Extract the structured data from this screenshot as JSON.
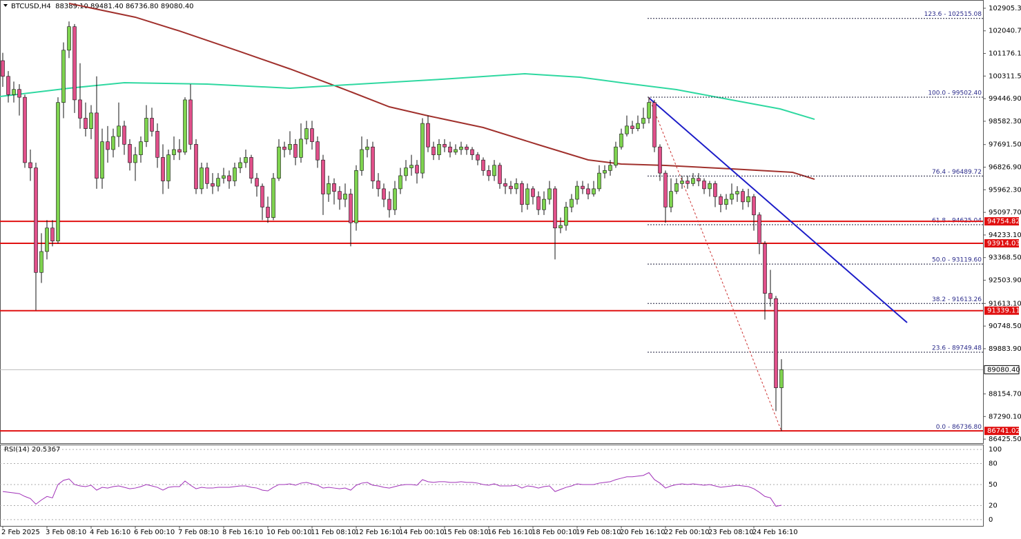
{
  "chart_data": {
    "type": "candlestick",
    "title": "BTCUSD,H4  88389.10 89481.40 86736.80 89080.40",
    "bull_color": "#7ed34f",
    "bear_color": "#e0508a",
    "ylim": [
      86270,
      103220
    ],
    "yticks": [
      {
        "value": 102905.3,
        "label": "102905.30"
      },
      {
        "value": 102040.7,
        "label": "102040.70"
      },
      {
        "value": 101176.1,
        "label": "101176.10"
      },
      {
        "value": 100311.5,
        "label": "100311.50"
      },
      {
        "value": 99446.9,
        "label": "99446.90"
      },
      {
        "value": 98582.3,
        "label": "98582.30"
      },
      {
        "value": 97691.5,
        "label": "97691.50"
      },
      {
        "value": 96826.9,
        "label": "96826.90"
      },
      {
        "value": 95962.3,
        "label": "95962.30"
      },
      {
        "value": 95097.7,
        "label": "95097.70"
      },
      {
        "value": 94233.1,
        "label": "94233.10"
      },
      {
        "value": 93368.5,
        "label": "93368.50"
      },
      {
        "value": 92503.9,
        "label": "92503.90"
      },
      {
        "value": 91613.1,
        "label": "91613.10"
      },
      {
        "value": 90748.5,
        "label": "90748.50"
      },
      {
        "value": 89883.9,
        "label": "89883.90"
      },
      {
        "value": 88154.7,
        "label": "88154.70"
      },
      {
        "value": 87290.1,
        "label": "87290.10"
      },
      {
        "value": 86425.5,
        "label": "86425.50"
      }
    ],
    "xticks": [
      {
        "value": 0,
        "label": "2 Feb 2025"
      },
      {
        "value": 8,
        "label": "3 Feb 08:10"
      },
      {
        "value": 16,
        "label": "4 Feb 16:10"
      },
      {
        "value": 24,
        "label": "6 Feb 00:10"
      },
      {
        "value": 32,
        "label": "7 Feb 08:10"
      },
      {
        "value": 40,
        "label": "8 Feb 16:10"
      },
      {
        "value": 48,
        "label": "10 Feb 00:10"
      },
      {
        "value": 56,
        "label": "11 Feb 08:10"
      },
      {
        "value": 64,
        "label": "12 Feb 16:10"
      },
      {
        "value": 72,
        "label": "14 Feb 00:10"
      },
      {
        "value": 80,
        "label": "15 Feb 08:10"
      },
      {
        "value": 88,
        "label": "16 Feb 16:10"
      },
      {
        "value": 96,
        "label": "18 Feb 00:10"
      },
      {
        "value": 104,
        "label": "19 Feb 08:10"
      },
      {
        "value": 112,
        "label": "20 Feb 16:10"
      },
      {
        "value": 120,
        "label": "22 Feb 00:10"
      },
      {
        "value": 128,
        "label": "23 Feb 08:10"
      },
      {
        "value": 136,
        "label": "24 Feb 16:10"
      }
    ],
    "candles": [
      [
        100900,
        101200,
        99900,
        100300
      ],
      [
        100300,
        100500,
        99300,
        99600
      ],
      [
        99600,
        100100,
        99300,
        99800
      ],
      [
        99800,
        100000,
        98800,
        99500
      ],
      [
        99500,
        99600,
        96800,
        97000
      ],
      [
        97000,
        97500,
        96300,
        96800
      ],
      [
        96800,
        97000,
        91350,
        92800
      ],
      [
        92800,
        94300,
        92400,
        93600
      ],
      [
        93600,
        94800,
        93300,
        94500
      ],
      [
        94500,
        94800,
        93800,
        94000
      ],
      [
        94000,
        99500,
        93900,
        99300
      ],
      [
        99300,
        101600,
        98700,
        101300
      ],
      [
        101300,
        102400,
        101000,
        102200
      ],
      [
        102200,
        102300,
        98900,
        99400
      ],
      [
        99400,
        100800,
        98300,
        98700
      ],
      [
        98700,
        99300,
        98000,
        98300
      ],
      [
        98300,
        99200,
        97900,
        98900
      ],
      [
        98900,
        100300,
        96000,
        96400
      ],
      [
        96400,
        98300,
        96000,
        97800
      ],
      [
        97800,
        98400,
        97000,
        97500
      ],
      [
        97500,
        98300,
        97200,
        98000
      ],
      [
        98000,
        99300,
        97600,
        98400
      ],
      [
        98400,
        98600,
        97300,
        97700
      ],
      [
        97700,
        97900,
        96700,
        97000
      ],
      [
        97000,
        97600,
        96300,
        97300
      ],
      [
        97300,
        98000,
        97000,
        97800
      ],
      [
        97800,
        99200,
        97600,
        98700
      ],
      [
        98700,
        99100,
        98000,
        98200
      ],
      [
        98200,
        98500,
        96800,
        97200
      ],
      [
        97200,
        97700,
        95800,
        96300
      ],
      [
        96300,
        97500,
        96000,
        97300
      ],
      [
        97300,
        98000,
        97100,
        97500
      ],
      [
        97500,
        97900,
        97100,
        97400
      ],
      [
        97400,
        99500,
        97300,
        99400
      ],
      [
        99400,
        100000,
        97500,
        97700
      ],
      [
        97700,
        97900,
        95800,
        96000
      ],
      [
        96000,
        97000,
        95800,
        96800
      ],
      [
        96800,
        97000,
        96000,
        96200
      ],
      [
        96200,
        96600,
        95800,
        96100
      ],
      [
        96100,
        96600,
        95900,
        96400
      ],
      [
        96400,
        96800,
        96200,
        96500
      ],
      [
        96500,
        96700,
        96000,
        96300
      ],
      [
        96300,
        97000,
        96100,
        96800
      ],
      [
        96800,
        97200,
        96600,
        97000
      ],
      [
        97000,
        97500,
        96800,
        97200
      ],
      [
        97200,
        97300,
        96200,
        96400
      ],
      [
        96400,
        96600,
        95700,
        96100
      ],
      [
        96100,
        96200,
        94800,
        95300
      ],
      [
        95300,
        95700,
        94700,
        94900
      ],
      [
        94900,
        96600,
        94800,
        96400
      ],
      [
        96400,
        97900,
        96300,
        97600
      ],
      [
        97600,
        97800,
        97200,
        97500
      ],
      [
        97500,
        98200,
        97300,
        97700
      ],
      [
        97700,
        97900,
        96900,
        97200
      ],
      [
        97200,
        98500,
        97000,
        97900
      ],
      [
        97900,
        98600,
        97700,
        98300
      ],
      [
        98300,
        98600,
        97500,
        97800
      ],
      [
        97800,
        98000,
        96800,
        97100
      ],
      [
        97100,
        97300,
        95000,
        95800
      ],
      [
        95800,
        96500,
        95500,
        96200
      ],
      [
        96200,
        96400,
        95400,
        95900
      ],
      [
        95900,
        96100,
        95200,
        95600
      ],
      [
        95600,
        96200,
        95300,
        95800
      ],
      [
        95800,
        96000,
        93800,
        94700
      ],
      [
        94700,
        96900,
        94400,
        96700
      ],
      [
        96700,
        98000,
        96500,
        97500
      ],
      [
        97500,
        97900,
        97200,
        97600
      ],
      [
        97600,
        97800,
        96000,
        96300
      ],
      [
        96300,
        96600,
        95700,
        96000
      ],
      [
        96000,
        96200,
        95300,
        95600
      ],
      [
        95600,
        95900,
        94900,
        95200
      ],
      [
        95200,
        96300,
        95000,
        96000
      ],
      [
        96000,
        96800,
        95800,
        96500
      ],
      [
        96500,
        97100,
        96300,
        96800
      ],
      [
        96800,
        97300,
        96500,
        96900
      ],
      [
        96900,
        97100,
        96200,
        96600
      ],
      [
        96600,
        98700,
        96400,
        98500
      ],
      [
        98500,
        98800,
        97400,
        97600
      ],
      [
        97600,
        97800,
        97100,
        97300
      ],
      [
        97300,
        97900,
        97100,
        97700
      ],
      [
        97700,
        97900,
        97400,
        97600
      ],
      [
        97600,
        97800,
        97200,
        97400
      ],
      [
        97400,
        97700,
        97300,
        97500
      ],
      [
        97500,
        97800,
        97300,
        97600
      ],
      [
        97600,
        97700,
        97300,
        97500
      ],
      [
        97500,
        97600,
        97100,
        97300
      ],
      [
        97300,
        97400,
        96900,
        97100
      ],
      [
        97100,
        97200,
        96500,
        96700
      ],
      [
        96700,
        96900,
        96300,
        96500
      ],
      [
        96500,
        97100,
        96300,
        96900
      ],
      [
        96900,
        97000,
        96000,
        96200
      ],
      [
        96200,
        96400,
        95800,
        96100
      ],
      [
        96100,
        96300,
        95800,
        96000
      ],
      [
        96000,
        96400,
        95800,
        96200
      ],
      [
        96200,
        96300,
        95100,
        95400
      ],
      [
        95400,
        96200,
        95200,
        96000
      ],
      [
        96000,
        96100,
        95400,
        95700
      ],
      [
        95700,
        95900,
        95000,
        95200
      ],
      [
        95200,
        95900,
        95000,
        95600
      ],
      [
        95600,
        96300,
        95400,
        96000
      ],
      [
        96000,
        96100,
        93300,
        94500
      ],
      [
        94500,
        94900,
        94300,
        94600
      ],
      [
        94600,
        95500,
        94400,
        95300
      ],
      [
        95300,
        95800,
        95100,
        95600
      ],
      [
        95600,
        96300,
        95400,
        96100
      ],
      [
        96100,
        96300,
        95800,
        96000
      ],
      [
        96000,
        96200,
        95600,
        95800
      ],
      [
        95800,
        96300,
        95700,
        96000
      ],
      [
        96000,
        96900,
        95900,
        96600
      ],
      [
        96600,
        96900,
        96400,
        96700
      ],
      [
        96700,
        97100,
        96500,
        96900
      ],
      [
        96900,
        97800,
        96800,
        97600
      ],
      [
        97600,
        98300,
        97500,
        98100
      ],
      [
        98100,
        98800,
        98000,
        98400
      ],
      [
        98400,
        98600,
        98100,
        98300
      ],
      [
        98300,
        98800,
        98200,
        98500
      ],
      [
        98500,
        99100,
        98300,
        98700
      ],
      [
        98700,
        99502.4,
        98500,
        99300
      ],
      [
        99300,
        99400,
        97400,
        97600
      ],
      [
        97600,
        97700,
        96300,
        96600
      ],
      [
        96600,
        96700,
        94700,
        95300
      ],
      [
        95300,
        96400,
        95100,
        95900
      ],
      [
        95900,
        96400,
        95800,
        96200
      ],
      [
        96200,
        96500,
        96000,
        96300
      ],
      [
        96300,
        96500,
        96000,
        96200
      ],
      [
        96200,
        96600,
        96100,
        96400
      ],
      [
        96400,
        96600,
        96100,
        96300
      ],
      [
        96300,
        96400,
        95800,
        96000
      ],
      [
        96000,
        96300,
        95700,
        96200
      ],
      [
        96200,
        96300,
        95300,
        95700
      ],
      [
        95700,
        95800,
        95100,
        95400
      ],
      [
        95400,
        95800,
        95200,
        95600
      ],
      [
        95600,
        96200,
        95400,
        95800
      ],
      [
        95800,
        96100,
        95500,
        95900
      ],
      [
        95900,
        96000,
        95200,
        95500
      ],
      [
        95500,
        96000,
        95300,
        95700
      ],
      [
        95700,
        95800,
        94400,
        95000
      ],
      [
        95000,
        95100,
        93500,
        93900
      ],
      [
        93900,
        94000,
        91000,
        92000
      ],
      [
        92000,
        92900,
        91500,
        91800
      ],
      [
        91800,
        91900,
        87500,
        88389.1
      ],
      [
        88389.1,
        89481.4,
        86736.8,
        89080.4
      ]
    ],
    "moving_averages": [
      {
        "color": "#a0302c",
        "x": [
          12,
          24,
          32,
          43,
          52,
          62,
          70,
          77,
          87,
          97,
          106,
          112,
          120,
          132,
          143,
          147
        ],
        "values": [
          103090,
          102562,
          102035,
          101244,
          100584,
          99793,
          99134,
          98791,
          98343,
          97684,
          97104,
          96945,
          96893,
          96761,
          96629,
          96365
        ]
      },
      {
        "color": "#2ed8a0",
        "x": [
          -0.5,
          12,
          22,
          37,
          52,
          64.5,
          79.5,
          94.5,
          104.5,
          112,
          122,
          132,
          140.75,
          147
        ],
        "values": [
          99530,
          99846,
          100057,
          100004,
          99846,
          100004,
          100189,
          100400,
          100268,
          100057,
          99793,
          99398,
          99055,
          98659
        ]
      }
    ],
    "levels": [
      94754.82,
      93914.03,
      91339.11,
      86741.02
    ],
    "level_color": "#e01010",
    "last_price": {
      "value": 89080.4,
      "label": "89080.40"
    },
    "fib": {
      "start": 116.75,
      "color": "#1a1a3a",
      "levels": [
        {
          "value": 102515.08,
          "label": "123.6 - 102515.08"
        },
        {
          "value": 99502.4,
          "label": "100.0 - 99502.40"
        },
        {
          "value": 96489.72,
          "label": "76.4 - 96489.72"
        },
        {
          "value": 94625.04,
          "label": "61.8 - 94625.04"
        },
        {
          "value": 93119.6,
          "label": "50.0 - 93119.60"
        },
        {
          "value": 91613.26,
          "label": "38.2 - 91613.26"
        },
        {
          "value": 89749.48,
          "label": "23.6 - 89749.48"
        },
        {
          "value": 86736.8,
          "label": "0.0 - 86736.80"
        }
      ]
    },
    "trendline": {
      "x": [
        117,
        163.75
      ],
      "values": [
        99478,
        90883
      ],
      "color": "#1c1cc8"
    },
    "fib_line": {
      "x": [
        117,
        141
      ],
      "values": [
        99502.4,
        86736.8
      ],
      "color": "#cc3030"
    },
    "rsi": {
      "title": "RSI(14) 20.5367",
      "color": "#a030b8",
      "ylim": [
        -9,
        106
      ],
      "yticks": [
        100,
        80,
        50,
        20,
        0
      ],
      "values": [
        40,
        39,
        38,
        37,
        33,
        30,
        22,
        28,
        33,
        31,
        50,
        56,
        58,
        50,
        48,
        47,
        49,
        42,
        46,
        45,
        47,
        48,
        46,
        44,
        45,
        47,
        50,
        48,
        46,
        42,
        46,
        47,
        47,
        55,
        49,
        44,
        46,
        45,
        45,
        46,
        46,
        46,
        47,
        48,
        48,
        46,
        45,
        42,
        41,
        46,
        50,
        50,
        51,
        49,
        52,
        53,
        51,
        49,
        45,
        46,
        45,
        44,
        45,
        42,
        49,
        52,
        53,
        49,
        48,
        46,
        45,
        47,
        49,
        50,
        50,
        49,
        57,
        54,
        53,
        54,
        54,
        53,
        53,
        54,
        53,
        53,
        52,
        50,
        49,
        51,
        48,
        48,
        48,
        49,
        45,
        48,
        47,
        45,
        47,
        48,
        40,
        43,
        46,
        48,
        51,
        50,
        50,
        50,
        52,
        53,
        54,
        57,
        59,
        61,
        61,
        62,
        63,
        67,
        57,
        52,
        45,
        48,
        50,
        51,
        50,
        51,
        50,
        49,
        50,
        48,
        46,
        47,
        48,
        49,
        48,
        47,
        44,
        39,
        33,
        31,
        19,
        20.5367
      ]
    }
  }
}
